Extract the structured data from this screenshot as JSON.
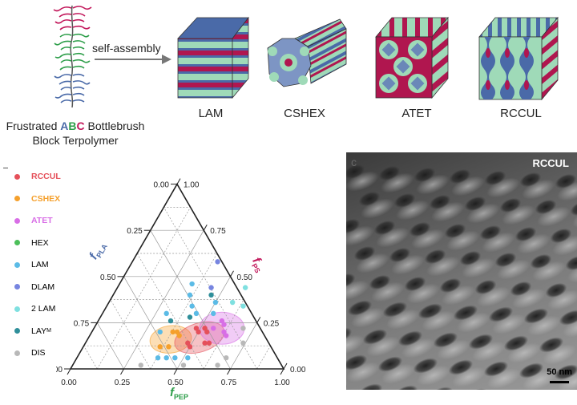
{
  "schematic": {
    "polymer_caption_line1_prefix": "Frustrated ",
    "polymer_caption_A": "A",
    "polymer_caption_B": "B",
    "polymer_caption_C": "C",
    "polymer_caption_line1_suffix": " Bottlebrush",
    "polymer_caption_line2": "Block Terpolymer",
    "arrow_label": "self-assembly",
    "structures": [
      "LAM",
      "CSHEX",
      "ATET",
      "RCCUL"
    ]
  },
  "legend": [
    {
      "label": "RCCUL",
      "color": "#e5505a",
      "colored_text": true
    },
    {
      "label": "CSHEX",
      "color": "#f5a02c",
      "colored_text": true
    },
    {
      "label": "ATET",
      "color": "#d86ee6",
      "colored_text": true
    },
    {
      "label": "HEX",
      "color": "#4cbf5a",
      "colored_text": false
    },
    {
      "label": "LAM",
      "color": "#5bbbe6",
      "colored_text": false
    },
    {
      "label": "DLAM",
      "color": "#7785e0",
      "colored_text": false
    },
    {
      "label": "2 LAM",
      "color": "#7fe0e0",
      "colored_text": false
    },
    {
      "label": "LAY",
      "sub": "M",
      "color": "#2f8f9a",
      "colored_text": false
    },
    {
      "label": "DIS",
      "color": "#b8b8b8",
      "colored_text": false
    }
  ],
  "ternary": {
    "bottom_ticks": [
      "0.00",
      "0.25",
      "0.50",
      "0.75",
      "1.00"
    ],
    "left_ticks": [
      "0.00",
      "0.25",
      "0.50",
      "0.75",
      "1.00"
    ],
    "right_ticks": [
      "1.00",
      "0.75",
      "0.50",
      "0.25",
      "0.00"
    ],
    "axis_pla": "f",
    "axis_pla_sub": "PLA",
    "axis_ps": "f",
    "axis_ps_sub": "PS",
    "axis_pep": "f",
    "axis_pep_sub": "PEP"
  },
  "chart_data": {
    "type": "scatter",
    "note_axes": "ternary: f_PEP (bottom), f_PLA (left), f_PS (right)",
    "series": [
      {
        "name": "RCCUL",
        "points": [
          [
            0.48,
            0.22,
            0.3
          ],
          [
            0.5,
            0.2,
            0.3
          ],
          [
            0.52,
            0.22,
            0.26
          ],
          [
            0.54,
            0.2,
            0.26
          ],
          [
            0.48,
            0.14,
            0.38
          ],
          [
            0.5,
            0.12,
            0.38
          ],
          [
            0.56,
            0.14,
            0.3
          ],
          [
            0.58,
            0.14,
            0.28
          ]
        ]
      },
      {
        "name": "CSHEX",
        "points": [
          [
            0.38,
            0.2,
            0.42
          ],
          [
            0.4,
            0.2,
            0.4
          ],
          [
            0.42,
            0.18,
            0.4
          ],
          [
            0.36,
            0.12,
            0.52
          ],
          [
            0.4,
            0.12,
            0.48
          ]
        ]
      },
      {
        "name": "ATET",
        "points": [
          [
            0.58,
            0.26,
            0.16
          ],
          [
            0.6,
            0.24,
            0.16
          ],
          [
            0.62,
            0.2,
            0.18
          ],
          [
            0.56,
            0.22,
            0.22
          ],
          [
            0.64,
            0.18,
            0.18
          ]
        ]
      },
      {
        "name": "LAM",
        "points": [
          [
            0.34,
            0.46,
            0.2
          ],
          [
            0.36,
            0.4,
            0.24
          ],
          [
            0.4,
            0.34,
            0.26
          ],
          [
            0.44,
            0.3,
            0.26
          ],
          [
            0.3,
            0.3,
            0.4
          ],
          [
            0.5,
            0.36,
            0.14
          ],
          [
            0.52,
            0.3,
            0.18
          ],
          [
            0.32,
            0.2,
            0.48
          ],
          [
            0.38,
            0.06,
            0.56
          ],
          [
            0.42,
            0.06,
            0.52
          ],
          [
            0.46,
            0.06,
            0.48
          ],
          [
            0.52,
            0.06,
            0.42
          ]
        ]
      },
      {
        "name": "DLAM",
        "points": [
          [
            0.4,
            0.58,
            0.02
          ],
          [
            0.44,
            0.44,
            0.12
          ]
        ]
      },
      {
        "name": "2 LAM",
        "points": [
          [
            0.6,
            0.44,
            -0.04
          ],
          [
            0.58,
            0.36,
            0.06
          ],
          [
            0.64,
            0.34,
            0.02
          ]
        ]
      },
      {
        "name": "LAY",
        "points": [
          [
            0.46,
            0.4,
            0.14
          ],
          [
            0.42,
            0.28,
            0.3
          ],
          [
            0.34,
            0.26,
            0.4
          ]
        ]
      },
      {
        "name": "DIS",
        "points": [
          [
            0.7,
            0.22,
            0.08
          ],
          [
            0.74,
            0.14,
            0.12
          ],
          [
            0.7,
            0.06,
            0.24
          ],
          [
            0.68,
            0.02,
            0.3
          ],
          [
            0.32,
            0.02,
            0.66
          ],
          [
            0.52,
            0.02,
            0.46
          ]
        ]
      }
    ],
    "regions": [
      {
        "name": "CSHEX",
        "color": "#f5a02c"
      },
      {
        "name": "RCCUL",
        "color": "#e5505a"
      },
      {
        "name": "ATET",
        "color": "#d86ee6"
      }
    ]
  },
  "tem": {
    "title": "RCCUL",
    "panel_letter": "c",
    "scale_label": "50 nm"
  }
}
